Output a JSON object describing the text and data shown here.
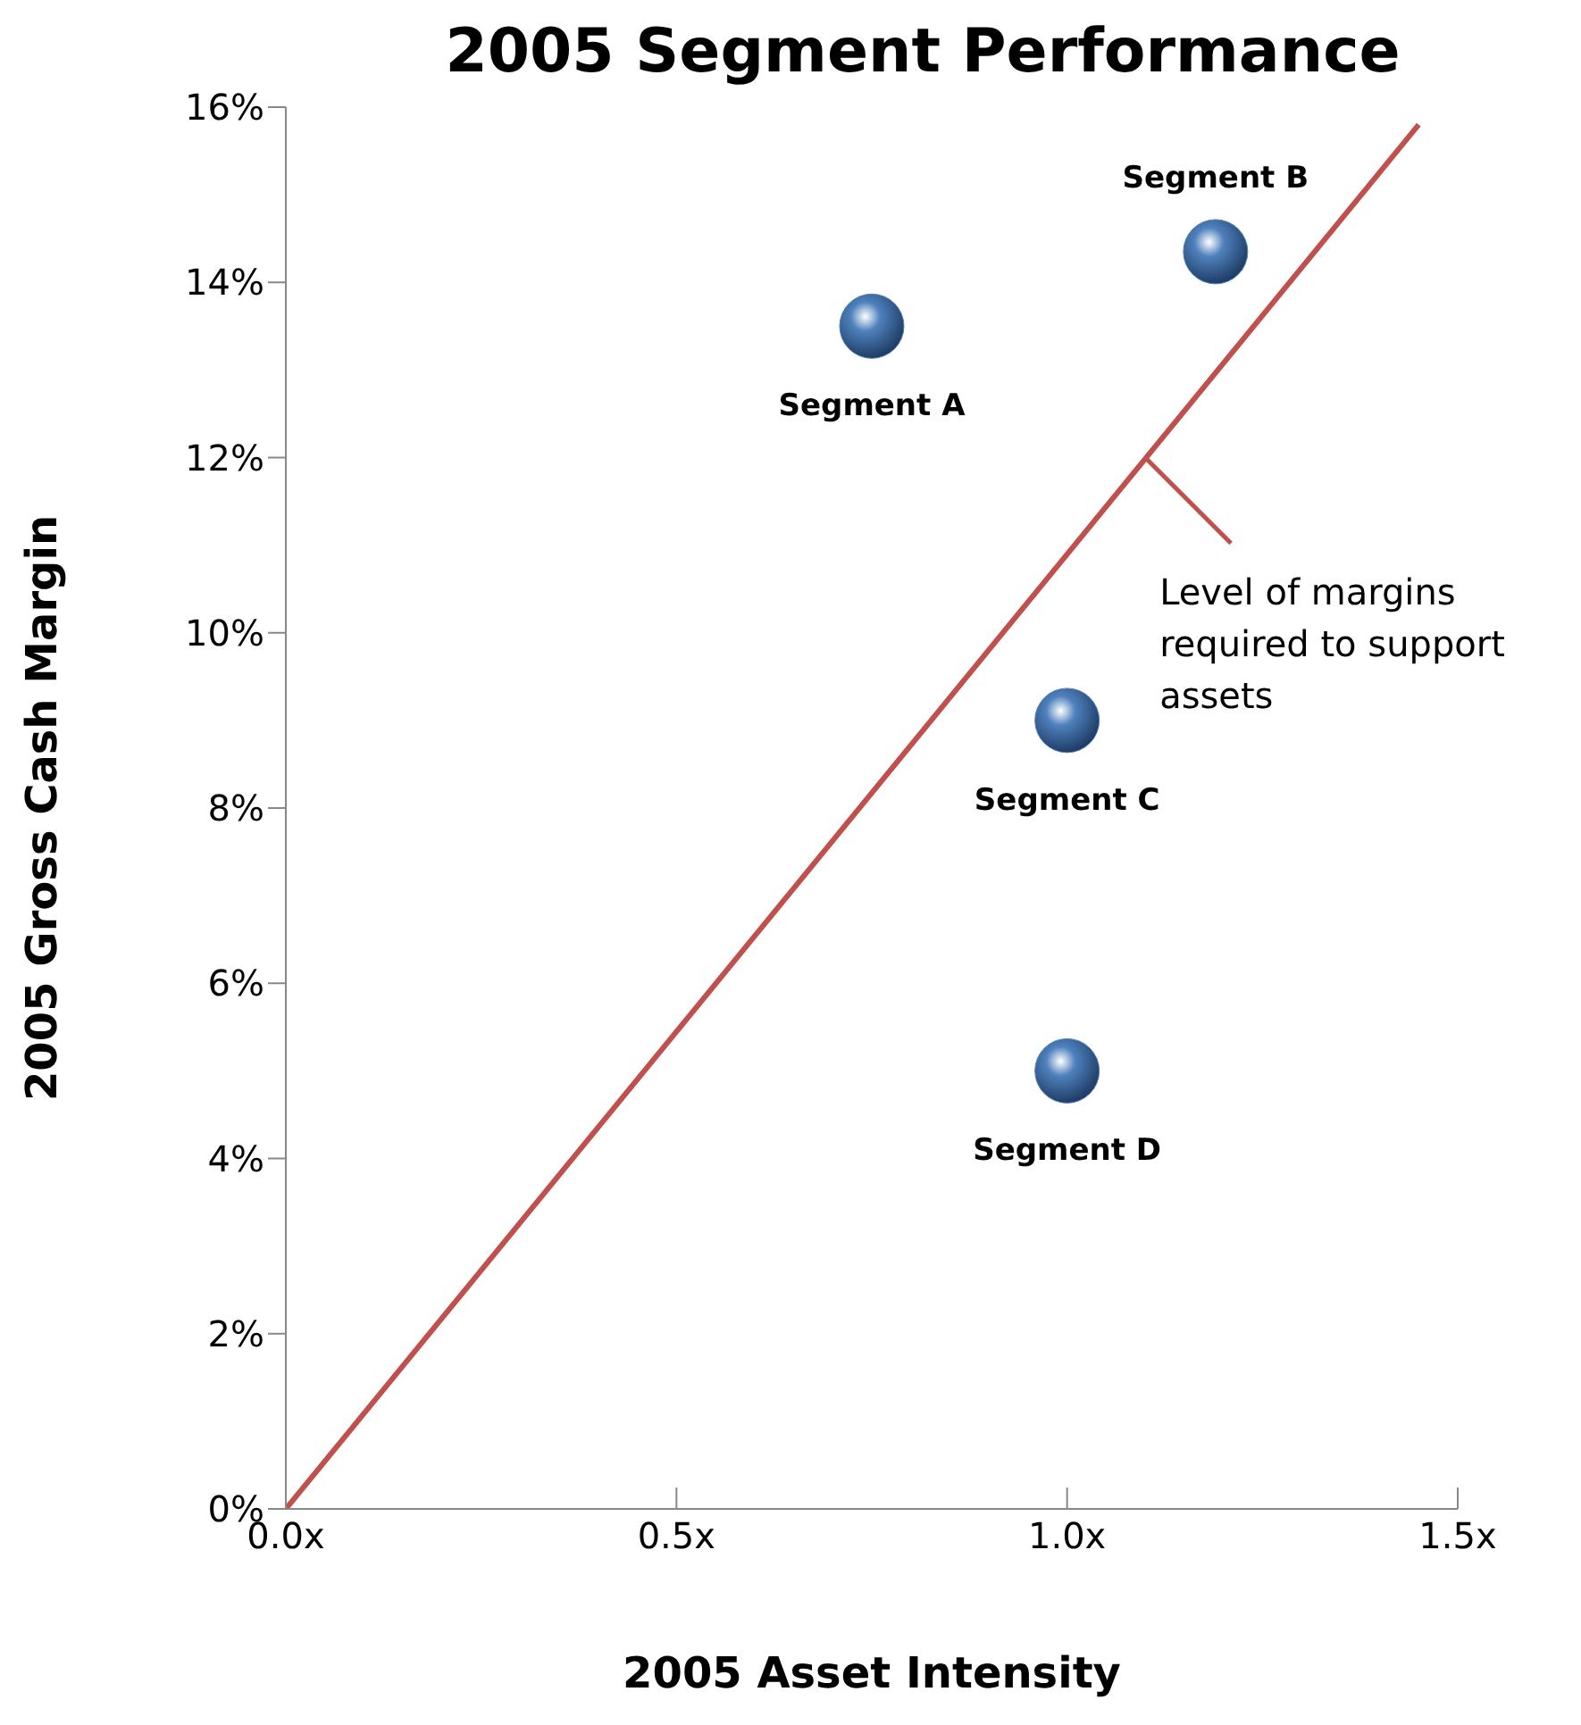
{
  "chart_data": {
    "type": "scatter",
    "title": "2005 Segment Performance",
    "xlabel": "2005 Asset Intensity",
    "ylabel": "2005 Gross Cash Margin",
    "xlim": [
      0,
      1.5
    ],
    "xticks": [
      {
        "value": 0,
        "label": "0.0x"
      },
      {
        "value": 0.5,
        "label": "0.5x"
      },
      {
        "value": 1,
        "label": "1.0x"
      },
      {
        "value": 1.5,
        "label": "1.5x"
      }
    ],
    "ylim": [
      0,
      16
    ],
    "yticks": [
      {
        "value": 0,
        "label": "0%"
      },
      {
        "value": 2,
        "label": "2%"
      },
      {
        "value": 4,
        "label": "4%"
      },
      {
        "value": 6,
        "label": "6%"
      },
      {
        "value": 8,
        "label": "8%"
      },
      {
        "value": 10,
        "label": "10%"
      },
      {
        "value": 12,
        "label": "12%"
      },
      {
        "value": 14,
        "label": "14%"
      },
      {
        "value": 16,
        "label": "16%"
      }
    ],
    "grid": false,
    "legend": false,
    "marker": "circle",
    "series": [
      {
        "name": "Segment A",
        "color": "#4f81bd",
        "x": [
          0.75
        ],
        "values": [
          13.5
        ]
      },
      {
        "name": "Segment B",
        "color": "#4f81bd",
        "x": [
          1.19
        ],
        "values": [
          14.35
        ]
      },
      {
        "name": "Segment C",
        "color": "#4f81bd",
        "x": [
          1.0
        ],
        "values": [
          9.0
        ]
      },
      {
        "name": "Segment D",
        "color": "#4f81bd",
        "x": [
          1.0
        ],
        "values": [
          5.0
        ]
      },
      {
        "type": "line",
        "color": "#c0504d",
        "x": [
          0,
          1.45
        ],
        "values": [
          0,
          15.8
        ],
        "line_style": "solid",
        "marker": "none"
      }
    ],
    "annotations": [
      {
        "text": "Level of margins required to support assets",
        "x": 1.1,
        "y": 12
      }
    ]
  }
}
